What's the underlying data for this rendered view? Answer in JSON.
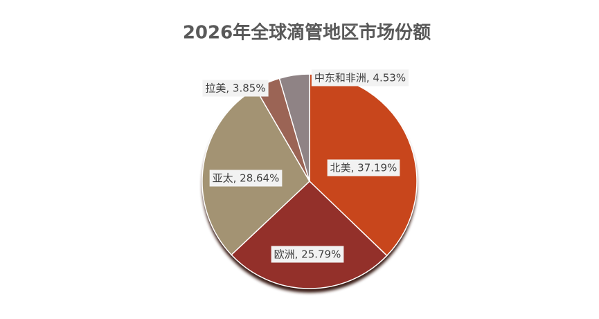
{
  "chart_data": {
    "type": "pie",
    "title": "2026年全球滴管地区市场份额",
    "categories": [
      "北美",
      "欧洲",
      "亚太",
      "拉美",
      "中东和非洲"
    ],
    "values": [
      37.19,
      25.79,
      28.64,
      3.85,
      4.53
    ],
    "value_labels": [
      "北美, 37.19%",
      "欧洲, 25.79%",
      "亚太, 28.64%",
      "拉美, 3.85%",
      "中东和非洲, 4.53%"
    ],
    "colors": [
      "#c8461c",
      "#93302a",
      "#a39373",
      "#9b6455",
      "#8f8385"
    ]
  }
}
